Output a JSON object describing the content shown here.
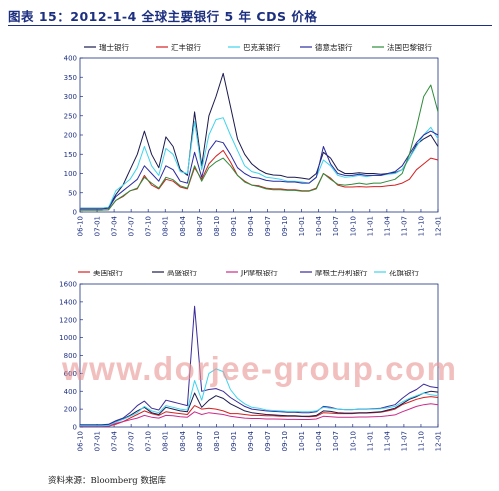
{
  "title": "图表 15：2012-1-4 全球主要银行 5 年 CDS 价格",
  "source": "资料来源：Bloomberg 数据库",
  "watermark": "www.dorjee-group.com",
  "chart_data": [
    {
      "type": "line",
      "ylim": [
        0,
        400
      ],
      "yticks": [
        0,
        50,
        100,
        150,
        200,
        250,
        300,
        350,
        400
      ],
      "xticks": [
        "06-10",
        "07-01",
        "07-04",
        "07-07",
        "07-10",
        "08-01",
        "08-04",
        "08-07",
        "08-10",
        "09-01",
        "09-04",
        "09-07",
        "09-10",
        "10-01",
        "10-04",
        "10-07",
        "10-10",
        "11-01",
        "11-04",
        "11-07",
        "11-10",
        "12-01"
      ],
      "legend_position": "top",
      "series": [
        {
          "name": "瑞士银行",
          "color": "#1a1a4e",
          "values": [
            10,
            10,
            10,
            10,
            12,
            45,
            70,
            110,
            150,
            210,
            150,
            115,
            195,
            170,
            110,
            95,
            260,
            120,
            250,
            300,
            360,
            275,
            190,
            150,
            125,
            110,
            100,
            96,
            95,
            90,
            90,
            88,
            85,
            100,
            155,
            140,
            110,
            100,
            100,
            102,
            100,
            100,
            98,
            100,
            102,
            110,
            140,
            175,
            190,
            200,
            170
          ]
        },
        {
          "name": "汇丰银行",
          "color": "#d42020",
          "values": [
            5,
            5,
            5,
            5,
            6,
            30,
            40,
            55,
            60,
            95,
            70,
            60,
            85,
            80,
            65,
            60,
            115,
            85,
            125,
            145,
            160,
            130,
            95,
            80,
            70,
            68,
            62,
            60,
            60,
            58,
            58,
            55,
            55,
            62,
            100,
            88,
            70,
            65,
            65,
            66,
            65,
            66,
            66,
            68,
            70,
            75,
            85,
            110,
            125,
            140,
            135
          ]
        },
        {
          "name": "巴克莱银行",
          "color": "#3fd3ee",
          "values": [
            10,
            10,
            10,
            10,
            12,
            55,
            70,
            85,
            115,
            170,
            120,
            95,
            165,
            150,
            105,
            100,
            235,
            110,
            200,
            240,
            245,
            200,
            160,
            120,
            105,
            100,
            90,
            88,
            85,
            80,
            80,
            78,
            75,
            90,
            135,
            120,
            95,
            90,
            92,
            95,
            92,
            95,
            95,
            98,
            100,
            110,
            140,
            170,
            200,
            220,
            190
          ]
        },
        {
          "name": "德意志银行",
          "color": "#2a2aa0",
          "values": [
            8,
            8,
            8,
            8,
            10,
            40,
            55,
            70,
            85,
            120,
            100,
            80,
            120,
            110,
            80,
            75,
            155,
            90,
            160,
            185,
            180,
            150,
            115,
            100,
            90,
            88,
            82,
            80,
            80,
            78,
            78,
            75,
            75,
            90,
            170,
            125,
            100,
            95,
            95,
            98,
            95,
            95,
            95,
            100,
            105,
            120,
            150,
            180,
            200,
            210,
            200
          ]
        },
        {
          "name": "法国巴黎银行",
          "color": "#2e8b3a",
          "values": [
            5,
            5,
            5,
            5,
            6,
            30,
            42,
            55,
            62,
            90,
            75,
            62,
            90,
            84,
            68,
            62,
            120,
            80,
            115,
            130,
            140,
            120,
            95,
            78,
            70,
            66,
            60,
            58,
            58,
            56,
            56,
            54,
            54,
            60,
            100,
            85,
            72,
            70,
            72,
            75,
            72,
            75,
            75,
            80,
            85,
            100,
            150,
            220,
            300,
            330,
            260
          ]
        }
      ]
    },
    {
      "type": "line",
      "ylim": [
        0,
        1600
      ],
      "yticks": [
        0,
        200,
        400,
        600,
        800,
        1000,
        1200,
        1400,
        1600
      ],
      "xticks": [
        "06-10",
        "07-01",
        "07-04",
        "07-07",
        "07-10",
        "08-01",
        "08-04",
        "08-07",
        "08-10",
        "09-01",
        "09-04",
        "09-07",
        "09-10",
        "10-01",
        "10-04",
        "10-07",
        "10-10",
        "11-01",
        "11-04",
        "11-07",
        "11-10",
        "12-01"
      ],
      "legend_position": "top",
      "series": [
        {
          "name": "美国银行",
          "color": "#d42020",
          "values": [
            10,
            10,
            10,
            10,
            10,
            30,
            60,
            100,
            140,
            180,
            150,
            130,
            170,
            160,
            150,
            140,
            240,
            200,
            210,
            200,
            180,
            150,
            150,
            140,
            130,
            130,
            125,
            125,
            120,
            120,
            120,
            118,
            115,
            120,
            160,
            155,
            150,
            150,
            150,
            155,
            155,
            160,
            165,
            180,
            200,
            250,
            280,
            310,
            330,
            340,
            330
          ]
        },
        {
          "name": "高盛银行",
          "color": "#1a1a4e",
          "values": [
            20,
            20,
            20,
            20,
            25,
            60,
            90,
            130,
            180,
            220,
            160,
            140,
            220,
            200,
            180,
            170,
            380,
            220,
            300,
            350,
            320,
            260,
            220,
            180,
            160,
            150,
            140,
            135,
            130,
            125,
            125,
            120,
            120,
            130,
            180,
            175,
            160,
            155,
            155,
            160,
            160,
            165,
            170,
            190,
            210,
            260,
            310,
            340,
            380,
            400,
            390
          ]
        },
        {
          "name": "JP摩根银行",
          "color": "#cc2a8a",
          "values": [
            10,
            10,
            10,
            10,
            12,
            40,
            60,
            80,
            100,
            130,
            110,
            100,
            130,
            125,
            115,
            110,
            170,
            140,
            160,
            150,
            140,
            120,
            110,
            100,
            95,
            95,
            90,
            90,
            88,
            85,
            85,
            84,
            84,
            90,
            120,
            115,
            110,
            108,
            110,
            112,
            112,
            115,
            118,
            125,
            135,
            170,
            200,
            230,
            250,
            260,
            250
          ]
        },
        {
          "name": "摩根士丹利银行",
          "color": "#3a2a9a",
          "values": [
            25,
            25,
            25,
            25,
            30,
            70,
            100,
            160,
            240,
            290,
            210,
            190,
            300,
            280,
            260,
            240,
            1350,
            400,
            420,
            430,
            400,
            330,
            280,
            230,
            200,
            190,
            180,
            175,
            170,
            165,
            165,
            160,
            160,
            170,
            230,
            220,
            200,
            195,
            195,
            200,
            200,
            205,
            210,
            230,
            250,
            320,
            380,
            420,
            480,
            450,
            440
          ]
        },
        {
          "name": "花旗银行",
          "color": "#3fd3ee",
          "values": [
            15,
            15,
            15,
            15,
            18,
            55,
            85,
            120,
            160,
            230,
            180,
            160,
            240,
            220,
            200,
            190,
            520,
            300,
            600,
            650,
            620,
            420,
            320,
            260,
            220,
            210,
            190,
            185,
            180,
            175,
            175,
            170,
            170,
            180,
            220,
            210,
            200,
            195,
            195,
            198,
            198,
            200,
            205,
            215,
            230,
            280,
            320,
            350,
            380,
            360,
            350
          ]
        }
      ]
    }
  ]
}
